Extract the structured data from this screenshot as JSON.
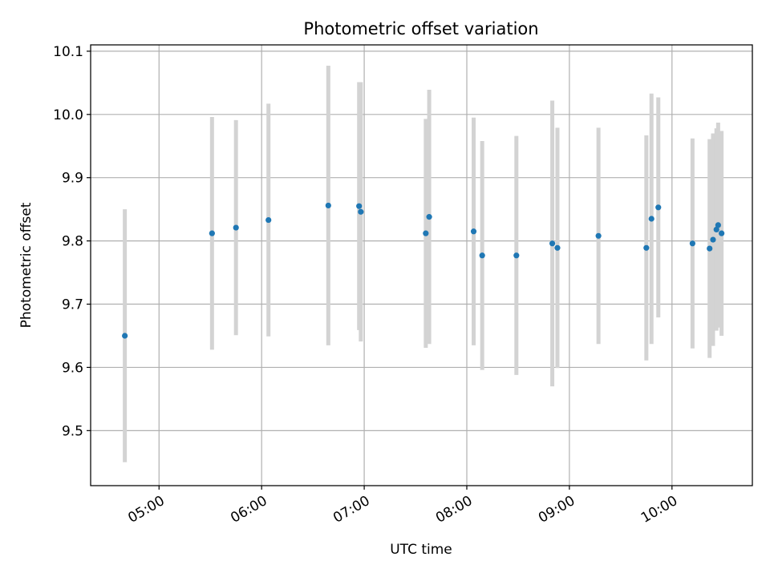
{
  "chart_data": {
    "type": "scatter",
    "title": "Photometric offset variation",
    "xlabel": "UTC time",
    "ylabel": "Photometric offset",
    "xlim": [
      "04:20",
      "10:47"
    ],
    "ylim": [
      9.413,
      10.11
    ],
    "x_ticks": [
      "05:00",
      "06:00",
      "07:00",
      "08:00",
      "09:00",
      "10:00"
    ],
    "y_ticks": [
      9.5,
      9.6,
      9.7,
      9.8,
      9.9,
      10.0,
      10.1
    ],
    "y_tick_labels": [
      "9.5",
      "9.6",
      "9.7",
      "9.8",
      "9.9",
      "10.0",
      "10.1"
    ],
    "grid": true,
    "marker_color": "#1f77b4",
    "errorbar_color": "#d3d3d3",
    "points": [
      {
        "x": "04:40",
        "y": 9.65,
        "err": 0.2
      },
      {
        "x": "05:31",
        "y": 9.812,
        "err": 0.184
      },
      {
        "x": "05:45",
        "y": 9.821,
        "err": 0.17
      },
      {
        "x": "06:04",
        "y": 9.833,
        "err": 0.184
      },
      {
        "x": "06:39",
        "y": 9.856,
        "err": 0.221
      },
      {
        "x": "06:57",
        "y": 9.855,
        "err": 0.196
      },
      {
        "x": "06:58",
        "y": 9.846,
        "err": 0.205
      },
      {
        "x": "07:36",
        "y": 9.812,
        "err": 0.181
      },
      {
        "x": "07:38",
        "y": 9.838,
        "err": 0.201
      },
      {
        "x": "08:04",
        "y": 9.815,
        "err": 0.18
      },
      {
        "x": "08:09",
        "y": 9.777,
        "err": 0.181
      },
      {
        "x": "08:29",
        "y": 9.777,
        "err": 0.189
      },
      {
        "x": "08:50",
        "y": 9.796,
        "err": 0.226
      },
      {
        "x": "08:53",
        "y": 9.789,
        "err": 0.19
      },
      {
        "x": "09:17",
        "y": 9.808,
        "err": 0.171
      },
      {
        "x": "09:45",
        "y": 9.789,
        "err": 0.178
      },
      {
        "x": "09:48",
        "y": 9.835,
        "err": 0.198
      },
      {
        "x": "09:52",
        "y": 9.853,
        "err": 0.174
      },
      {
        "x": "10:12",
        "y": 9.796,
        "err": 0.166
      },
      {
        "x": "10:22",
        "y": 9.788,
        "err": 0.173
      },
      {
        "x": "10:24",
        "y": 9.802,
        "err": 0.168
      },
      {
        "x": "10:26",
        "y": 9.818,
        "err": 0.16
      },
      {
        "x": "10:27",
        "y": 9.825,
        "err": 0.162
      },
      {
        "x": "10:29",
        "y": 9.812,
        "err": 0.162
      }
    ]
  }
}
